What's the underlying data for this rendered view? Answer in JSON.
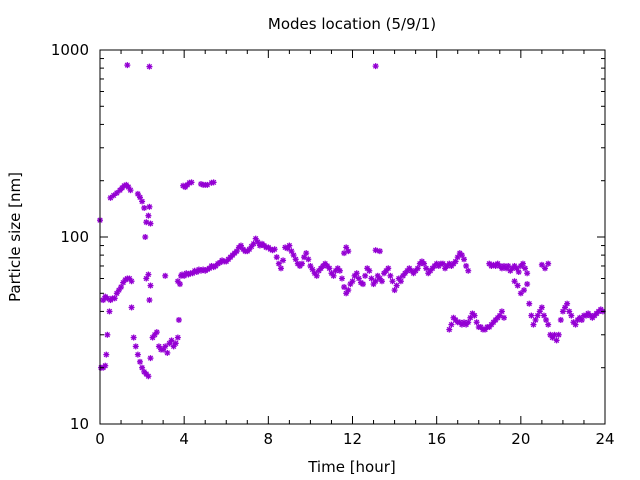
{
  "chart_data": {
    "type": "scatter",
    "title": "Modes location (5/9/1)",
    "xlabel": "Time [hour]",
    "ylabel": "Particle size [nm]",
    "xlim": [
      0,
      24
    ],
    "ylim": [
      10,
      1000
    ],
    "yscale": "log",
    "grid": false,
    "legend": "none",
    "marker_color": "#9400d3",
    "xticks": [
      0,
      4,
      8,
      12,
      16,
      20,
      24
    ],
    "xtick_labels": [
      "0",
      "4",
      "8",
      "12",
      "16",
      "20",
      "24"
    ],
    "yticks": [
      10,
      100,
      1000
    ],
    "ytick_labels": [
      "10",
      "100",
      "1000"
    ],
    "series": [
      {
        "points": [
          [
            0,
            123
          ],
          [
            0.05,
            20
          ],
          [
            0.15,
            20
          ],
          [
            0.25,
            20.5
          ],
          [
            0.3,
            23.5
          ],
          [
            0.35,
            30
          ],
          [
            0.45,
            40
          ],
          [
            0.15,
            46
          ],
          [
            0.25,
            48
          ],
          [
            0.35,
            47
          ],
          [
            0.5,
            46
          ],
          [
            0.6,
            47
          ],
          [
            0.7,
            47
          ],
          [
            0.8,
            50
          ],
          [
            0.9,
            52
          ],
          [
            1.0,
            54
          ],
          [
            1.1,
            57
          ],
          [
            1.2,
            59
          ],
          [
            1.3,
            60
          ],
          [
            1.4,
            60
          ],
          [
            1.5,
            58
          ],
          [
            0.5,
            162
          ],
          [
            0.65,
            167
          ],
          [
            0.8,
            172
          ],
          [
            0.95,
            178
          ],
          [
            1.05,
            183
          ],
          [
            1.15,
            188
          ],
          [
            1.25,
            190
          ],
          [
            1.35,
            185
          ],
          [
            1.45,
            178
          ],
          [
            1.3,
            830
          ],
          [
            2.35,
            815
          ],
          [
            13.1,
            820
          ],
          [
            1.5,
            42
          ],
          [
            1.6,
            29
          ],
          [
            1.7,
            26
          ],
          [
            1.8,
            23.5
          ],
          [
            1.9,
            21.5
          ],
          [
            2.0,
            20
          ],
          [
            2.1,
            19
          ],
          [
            2.2,
            18.5
          ],
          [
            2.3,
            18
          ],
          [
            2.4,
            22.5
          ],
          [
            2.5,
            29
          ],
          [
            2.6,
            30
          ],
          [
            2.7,
            31
          ],
          [
            1.8,
            170
          ],
          [
            1.9,
            163
          ],
          [
            2.0,
            155
          ],
          [
            2.1,
            143
          ],
          [
            2.2,
            120
          ],
          [
            2.3,
            130
          ],
          [
            2.35,
            145
          ],
          [
            2.4,
            118
          ],
          [
            2.15,
            100
          ],
          [
            2.2,
            60
          ],
          [
            2.3,
            63
          ],
          [
            2.35,
            46
          ],
          [
            2.4,
            55
          ],
          [
            2.8,
            26
          ],
          [
            2.9,
            25
          ],
          [
            3.0,
            25
          ],
          [
            3.1,
            26
          ],
          [
            3.2,
            24
          ],
          [
            3.3,
            27
          ],
          [
            3.4,
            28
          ],
          [
            3.5,
            26
          ],
          [
            3.6,
            27
          ],
          [
            3.7,
            29
          ],
          [
            3.75,
            36
          ],
          [
            3.1,
            62
          ],
          [
            3.7,
            58
          ],
          [
            3.8,
            56
          ],
          [
            3.85,
            62
          ],
          [
            3.9,
            63
          ],
          [
            4.0,
            62
          ],
          [
            4.1,
            64
          ],
          [
            4.2,
            63
          ],
          [
            4.3,
            64
          ],
          [
            4.4,
            64
          ],
          [
            4.5,
            66
          ],
          [
            4.6,
            65
          ],
          [
            4.7,
            67
          ],
          [
            4.8,
            66
          ],
          [
            4.9,
            67
          ],
          [
            5.0,
            66
          ],
          [
            5.1,
            67
          ],
          [
            5.2,
            68
          ],
          [
            5.3,
            70
          ],
          [
            5.4,
            69
          ],
          [
            5.5,
            70
          ],
          [
            5.6,
            72
          ],
          [
            5.7,
            73
          ],
          [
            5.8,
            75
          ],
          [
            5.9,
            74
          ],
          [
            6.0,
            74
          ],
          [
            6.1,
            76
          ],
          [
            6.2,
            78
          ],
          [
            6.3,
            80
          ],
          [
            6.4,
            82
          ],
          [
            6.5,
            84
          ],
          [
            6.6,
            88
          ],
          [
            6.7,
            90
          ],
          [
            6.8,
            86
          ],
          [
            6.9,
            84
          ],
          [
            7.0,
            84
          ],
          [
            7.1,
            86
          ],
          [
            7.2,
            89
          ],
          [
            7.3,
            92
          ],
          [
            7.4,
            98
          ],
          [
            7.5,
            94
          ],
          [
            7.6,
            90
          ],
          [
            7.7,
            92
          ],
          [
            7.8,
            90
          ],
          [
            7.9,
            88
          ],
          [
            8.0,
            88
          ],
          [
            8.1,
            86
          ],
          [
            8.2,
            85
          ],
          [
            8.3,
            86
          ],
          [
            3.95,
            188
          ],
          [
            4.05,
            185
          ],
          [
            4.15,
            190
          ],
          [
            4.25,
            195
          ],
          [
            4.35,
            196
          ],
          [
            4.8,
            192
          ],
          [
            4.9,
            190
          ],
          [
            5.0,
            190
          ],
          [
            5.1,
            190
          ],
          [
            5.3,
            195
          ],
          [
            5.4,
            196
          ],
          [
            8.4,
            78
          ],
          [
            8.5,
            72
          ],
          [
            8.6,
            68
          ],
          [
            8.7,
            75
          ],
          [
            8.8,
            88
          ],
          [
            8.9,
            87
          ],
          [
            9.0,
            90
          ],
          [
            9.1,
            84
          ],
          [
            9.2,
            80
          ],
          [
            9.3,
            76
          ],
          [
            9.4,
            72
          ],
          [
            9.5,
            70
          ],
          [
            9.6,
            72
          ],
          [
            9.7,
            78
          ],
          [
            9.8,
            82
          ],
          [
            9.9,
            76
          ],
          [
            10.0,
            70
          ],
          [
            10.1,
            67
          ],
          [
            10.2,
            64
          ],
          [
            10.3,
            62
          ],
          [
            10.4,
            66
          ],
          [
            10.5,
            68
          ],
          [
            10.6,
            70
          ],
          [
            10.7,
            72
          ],
          [
            10.8,
            70
          ],
          [
            10.9,
            68
          ],
          [
            11.0,
            64
          ],
          [
            11.1,
            62
          ],
          [
            11.2,
            66
          ],
          [
            11.3,
            68
          ],
          [
            11.4,
            66
          ],
          [
            11.5,
            60
          ],
          [
            11.6,
            54
          ],
          [
            11.7,
            50
          ],
          [
            11.8,
            52
          ],
          [
            11.9,
            56
          ],
          [
            12.0,
            58
          ],
          [
            12.1,
            62
          ],
          [
            12.2,
            64
          ],
          [
            12.3,
            60
          ],
          [
            12.4,
            57
          ],
          [
            12.5,
            56
          ],
          [
            12.6,
            62
          ],
          [
            12.7,
            68
          ],
          [
            12.8,
            66
          ],
          [
            12.9,
            60
          ],
          [
            13.0,
            56
          ],
          [
            13.1,
            58
          ],
          [
            13.2,
            62
          ],
          [
            13.3,
            60
          ],
          [
            13.4,
            58
          ],
          [
            11.6,
            82
          ],
          [
            11.7,
            88
          ],
          [
            11.8,
            84
          ],
          [
            13.1,
            85
          ],
          [
            13.3,
            84
          ],
          [
            13.5,
            64
          ],
          [
            13.6,
            66
          ],
          [
            13.7,
            68
          ],
          [
            13.8,
            62
          ],
          [
            13.9,
            58
          ],
          [
            14.0,
            52
          ],
          [
            14.1,
            55
          ],
          [
            14.2,
            60
          ],
          [
            14.3,
            58
          ],
          [
            14.4,
            62
          ],
          [
            14.5,
            64
          ],
          [
            14.6,
            66
          ],
          [
            14.7,
            68
          ],
          [
            14.8,
            66
          ],
          [
            14.9,
            64
          ],
          [
            15.0,
            66
          ],
          [
            15.1,
            68
          ],
          [
            15.2,
            72
          ],
          [
            15.3,
            74
          ],
          [
            15.4,
            72
          ],
          [
            15.5,
            68
          ],
          [
            15.6,
            64
          ],
          [
            15.7,
            66
          ],
          [
            15.8,
            68
          ],
          [
            15.9,
            70
          ],
          [
            16.0,
            72
          ],
          [
            16.1,
            70
          ],
          [
            16.2,
            72
          ],
          [
            16.3,
            72
          ],
          [
            16.4,
            68
          ],
          [
            16.5,
            70
          ],
          [
            16.6,
            72
          ],
          [
            16.7,
            70
          ],
          [
            16.8,
            72
          ],
          [
            16.9,
            74
          ],
          [
            17.0,
            78
          ],
          [
            17.1,
            82
          ],
          [
            17.2,
            80
          ],
          [
            17.3,
            76
          ],
          [
            17.4,
            70
          ],
          [
            17.5,
            66
          ],
          [
            16.6,
            32
          ],
          [
            16.7,
            34
          ],
          [
            16.8,
            37
          ],
          [
            16.9,
            36
          ],
          [
            17.0,
            35
          ],
          [
            17.1,
            35
          ],
          [
            17.2,
            34
          ],
          [
            17.3,
            35
          ],
          [
            17.4,
            34
          ],
          [
            17.5,
            35
          ],
          [
            17.6,
            37
          ],
          [
            17.7,
            39
          ],
          [
            17.8,
            38
          ],
          [
            17.9,
            35
          ],
          [
            18.0,
            33
          ],
          [
            18.1,
            33
          ],
          [
            18.2,
            32
          ],
          [
            18.3,
            32
          ],
          [
            18.4,
            33
          ],
          [
            18.5,
            33
          ],
          [
            18.6,
            34
          ],
          [
            18.7,
            35
          ],
          [
            18.8,
            36
          ],
          [
            18.9,
            37
          ],
          [
            19.0,
            38
          ],
          [
            19.1,
            40
          ],
          [
            19.2,
            37
          ],
          [
            18.5,
            72
          ],
          [
            18.6,
            70
          ],
          [
            18.7,
            71
          ],
          [
            18.8,
            70
          ],
          [
            18.9,
            72
          ],
          [
            19.0,
            70
          ],
          [
            19.1,
            68
          ],
          [
            19.2,
            70
          ],
          [
            19.3,
            68
          ],
          [
            19.4,
            70
          ],
          [
            19.5,
            66
          ],
          [
            19.6,
            68
          ],
          [
            19.7,
            70
          ],
          [
            19.8,
            68
          ],
          [
            19.9,
            65
          ],
          [
            20.0,
            70
          ],
          [
            20.1,
            72
          ],
          [
            20.2,
            68
          ],
          [
            20.3,
            64
          ],
          [
            19.7,
            58
          ],
          [
            19.85,
            55
          ],
          [
            20.0,
            50
          ],
          [
            20.15,
            52
          ],
          [
            20.3,
            56
          ],
          [
            20.4,
            44
          ],
          [
            20.5,
            38
          ],
          [
            20.6,
            34
          ],
          [
            20.7,
            36
          ],
          [
            20.8,
            38
          ],
          [
            20.9,
            40
          ],
          [
            21.0,
            42
          ],
          [
            21.1,
            38
          ],
          [
            21.2,
            36
          ],
          [
            21.3,
            34
          ],
          [
            21.4,
            30
          ],
          [
            21.5,
            29
          ],
          [
            21.6,
            30
          ],
          [
            21.7,
            28
          ],
          [
            21.8,
            30
          ],
          [
            21.9,
            36
          ],
          [
            22.0,
            40
          ],
          [
            22.1,
            42
          ],
          [
            22.2,
            44
          ],
          [
            22.3,
            40
          ],
          [
            22.4,
            38
          ],
          [
            22.5,
            35
          ],
          [
            22.6,
            34
          ],
          [
            22.7,
            36
          ],
          [
            22.8,
            37
          ],
          [
            22.9,
            36
          ],
          [
            23.0,
            38
          ],
          [
            23.1,
            38
          ],
          [
            23.2,
            39
          ],
          [
            23.3,
            38
          ],
          [
            23.4,
            37
          ],
          [
            23.5,
            38
          ],
          [
            23.6,
            39
          ],
          [
            23.7,
            40
          ],
          [
            23.8,
            41
          ],
          [
            23.9,
            40
          ],
          [
            21.0,
            71
          ],
          [
            21.15,
            68
          ],
          [
            21.3,
            72
          ]
        ]
      }
    ]
  }
}
